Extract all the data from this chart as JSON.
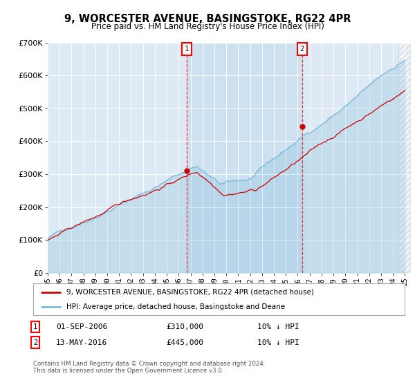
{
  "title": "9, WORCESTER AVENUE, BASINGSTOKE, RG22 4PR",
  "subtitle": "Price paid vs. HM Land Registry's House Price Index (HPI)",
  "ylim": [
    0,
    700000
  ],
  "yticks": [
    0,
    100000,
    200000,
    300000,
    400000,
    500000,
    600000,
    700000
  ],
  "ytick_labels": [
    "£0",
    "£100K",
    "£200K",
    "£300K",
    "£400K",
    "£500K",
    "£600K",
    "£700K"
  ],
  "hpi_color": "#7ab8d9",
  "price_color": "#cc0000",
  "background_color": "#ddeaf5",
  "highlight_color": "#cce0f0",
  "sale1_year": 2006.67,
  "sale2_year": 2016.37,
  "sale1_price": 310000,
  "sale2_price": 445000,
  "sale1_date_label": "01-SEP-2006",
  "sale2_date_label": "13-MAY-2016",
  "sale1_price_label": "£310,000",
  "sale2_price_label": "£445,000",
  "sale1_hpi_pct": "10% ↓ HPI",
  "sale2_hpi_pct": "10% ↓ HPI",
  "legend_label_red": "9, WORCESTER AVENUE, BASINGSTOKE, RG22 4PR (detached house)",
  "legend_label_blue": "HPI: Average price, detached house, Basingstoke and Deane",
  "footnote": "Contains HM Land Registry data © Crown copyright and database right 2024.\nThis data is licensed under the Open Government Licence v3.0.",
  "xmin": 1995,
  "xmax": 2025.5,
  "hatch_start": 2024.5
}
